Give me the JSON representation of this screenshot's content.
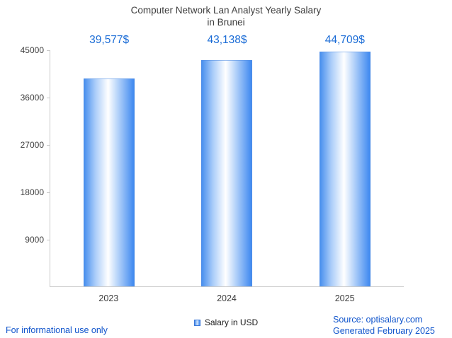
{
  "title": {
    "line1": "Computer Network Lan Analyst Yearly Salary",
    "line2": "in Brunei"
  },
  "chart_data": {
    "type": "bar",
    "title": "Computer Network Lan Analyst Yearly Salary in Brunei",
    "categories": [
      "2023",
      "2024",
      "2025"
    ],
    "values": [
      39577,
      43138,
      44709
    ],
    "value_labels": [
      "39,577$",
      "43,138$",
      "44,709$"
    ],
    "series_name": "Salary in USD",
    "yticks": [
      45000,
      36000,
      27000,
      18000,
      9000
    ],
    "ylim": [
      0,
      45000
    ],
    "xlabel": "",
    "ylabel": "",
    "grid": false,
    "legend_position": "bottom"
  },
  "legend": {
    "label": "Salary in USD"
  },
  "footer": {
    "left": "For informational use only",
    "source": "Source: optisalary.com",
    "generated": "Generated February 2025"
  },
  "colors": {
    "value_label": "#1b6cd6",
    "footer_text": "#1155cc",
    "bar_edge": "#4a90ee",
    "bar_center": "#ffffff",
    "axis": "#c9c9c9",
    "text": "#3d3d3d",
    "legend_marker": "#4a86d8"
  }
}
